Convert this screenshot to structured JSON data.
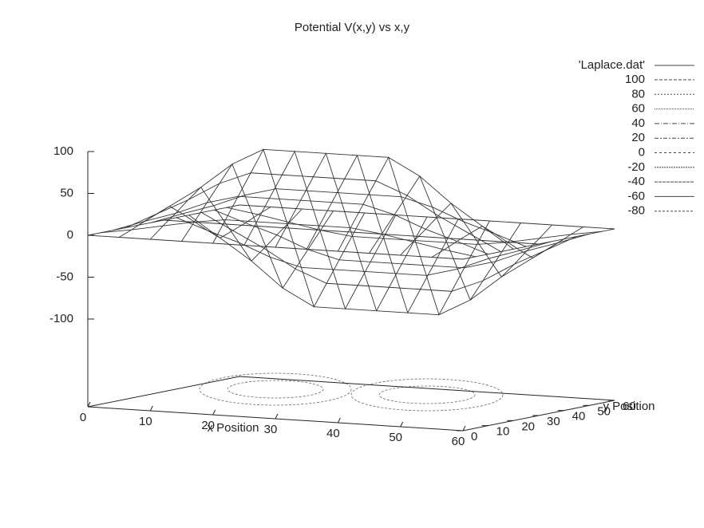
{
  "chart_data": {
    "type": "surface",
    "title": "Potential V(x,y) vs x,y",
    "xlabel": "x Position",
    "ylabel": "y Position",
    "x": [
      0,
      5,
      10,
      15,
      20,
      25,
      30,
      35,
      40,
      45,
      50,
      55,
      60
    ],
    "y": [
      0,
      5,
      10,
      15,
      20,
      25,
      30,
      35,
      40,
      45,
      50,
      55,
      60
    ],
    "z": [
      [
        0,
        0,
        0,
        0,
        0,
        0,
        0,
        0,
        0,
        0,
        0,
        0,
        0
      ],
      [
        0,
        6,
        13,
        20,
        25,
        25,
        25,
        25,
        25,
        20,
        13,
        6,
        0
      ],
      [
        0,
        13,
        25,
        40,
        50,
        50,
        50,
        50,
        50,
        40,
        25,
        13,
        0
      ],
      [
        0,
        19,
        38,
        60,
        75,
        75,
        75,
        75,
        75,
        60,
        38,
        19,
        0
      ],
      [
        0,
        25,
        50,
        80,
        100,
        100,
        100,
        100,
        100,
        80,
        50,
        25,
        0
      ],
      [
        0,
        13,
        25,
        40,
        50,
        50,
        50,
        50,
        50,
        40,
        25,
        13,
        0
      ],
      [
        0,
        0,
        0,
        0,
        0,
        0,
        0,
        0,
        0,
        0,
        0,
        0,
        0
      ],
      [
        0,
        -13,
        -25,
        -40,
        -50,
        -50,
        -50,
        -50,
        -50,
        -40,
        -25,
        -13,
        0
      ],
      [
        0,
        -25,
        -50,
        -80,
        -100,
        -100,
        -100,
        -100,
        -100,
        -80,
        -50,
        -25,
        0
      ],
      [
        0,
        -19,
        -38,
        -60,
        -75,
        -75,
        -75,
        -75,
        -75,
        -60,
        -38,
        -19,
        0
      ],
      [
        0,
        -13,
        -25,
        -40,
        -50,
        -50,
        -50,
        -50,
        -50,
        -40,
        -25,
        -13,
        0
      ],
      [
        0,
        -6,
        -13,
        -20,
        -25,
        -25,
        -25,
        -25,
        -25,
        -20,
        -13,
        -6,
        0
      ],
      [
        0,
        0,
        0,
        0,
        0,
        0,
        0,
        0,
        0,
        0,
        0,
        0,
        0
      ]
    ],
    "color": "#333333",
    "xlim": [
      0,
      60
    ],
    "xticks": [
      0,
      10,
      20,
      30,
      40,
      50,
      60
    ],
    "ylim": [
      0,
      60
    ],
    "yticks": [
      0,
      10,
      20,
      30,
      40,
      50,
      60
    ],
    "zlim": [
      -100,
      100
    ],
    "zticks": [
      -100,
      -50,
      0,
      50,
      100
    ],
    "series_name": "'Laplace.dat'",
    "contour_levels": [
      100,
      80,
      60,
      40,
      20,
      0,
      -20,
      -40,
      -60,
      -80
    ]
  }
}
